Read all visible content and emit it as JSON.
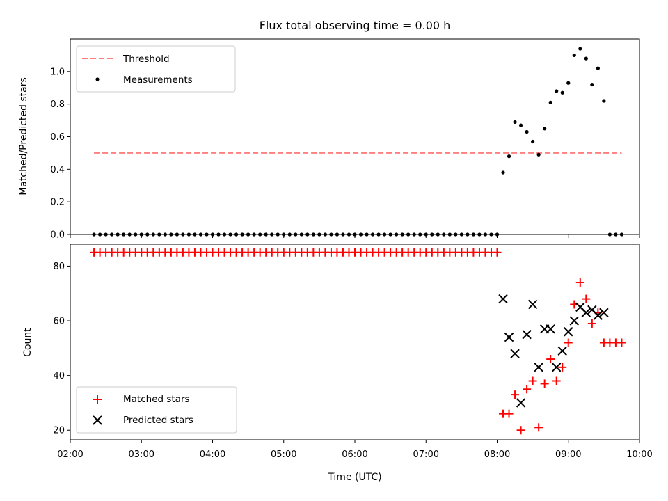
{
  "chart_data": [
    {
      "type": "scatter",
      "title": "Flux total observing time = 0.00 h",
      "xlabel": "",
      "ylabel": "Matched/Predicted stars",
      "xlim": [
        "02:00",
        "10:00"
      ],
      "ylim": [
        0,
        1.2
      ],
      "yticks": [
        0.0,
        0.2,
        0.4,
        0.6,
        0.8,
        1.0
      ],
      "yticklabels": [
        "0.0",
        "0.2",
        "0.4",
        "0.6",
        "0.8",
        "1.0"
      ],
      "xticks": [
        "02:00",
        "03:00",
        "04:00",
        "05:00",
        "06:00",
        "07:00",
        "08:00",
        "09:00",
        "10:00"
      ],
      "legend_position": "upper-left",
      "threshold": {
        "name": "Threshold",
        "value": 0.5,
        "x_range": [
          "02:20",
          "09:45"
        ],
        "color": "#ff7f7f",
        "style": "dashed"
      },
      "series": [
        {
          "name": "Measurements",
          "color": "#000000",
          "marker": "dot",
          "points": [
            [
              "02:20",
              0
            ],
            [
              "02:25",
              0
            ],
            [
              "02:30",
              0
            ],
            [
              "02:35",
              0
            ],
            [
              "02:40",
              0
            ],
            [
              "02:45",
              0
            ],
            [
              "02:50",
              0
            ],
            [
              "02:55",
              0
            ],
            [
              "03:00",
              0
            ],
            [
              "03:05",
              0
            ],
            [
              "03:10",
              0
            ],
            [
              "03:15",
              0
            ],
            [
              "03:20",
              0
            ],
            [
              "03:25",
              0
            ],
            [
              "03:30",
              0
            ],
            [
              "03:35",
              0
            ],
            [
              "03:40",
              0
            ],
            [
              "03:45",
              0
            ],
            [
              "03:50",
              0
            ],
            [
              "03:55",
              0
            ],
            [
              "04:00",
              0
            ],
            [
              "04:05",
              0
            ],
            [
              "04:10",
              0
            ],
            [
              "04:15",
              0
            ],
            [
              "04:20",
              0
            ],
            [
              "04:25",
              0
            ],
            [
              "04:30",
              0
            ],
            [
              "04:35",
              0
            ],
            [
              "04:40",
              0
            ],
            [
              "04:45",
              0
            ],
            [
              "04:50",
              0
            ],
            [
              "04:55",
              0
            ],
            [
              "05:00",
              0
            ],
            [
              "05:05",
              0
            ],
            [
              "05:10",
              0
            ],
            [
              "05:15",
              0
            ],
            [
              "05:20",
              0
            ],
            [
              "05:25",
              0
            ],
            [
              "05:30",
              0
            ],
            [
              "05:35",
              0
            ],
            [
              "05:40",
              0
            ],
            [
              "05:45",
              0
            ],
            [
              "05:50",
              0
            ],
            [
              "05:55",
              0
            ],
            [
              "06:00",
              0
            ],
            [
              "06:05",
              0
            ],
            [
              "06:10",
              0
            ],
            [
              "06:15",
              0
            ],
            [
              "06:20",
              0
            ],
            [
              "06:25",
              0
            ],
            [
              "06:30",
              0
            ],
            [
              "06:35",
              0
            ],
            [
              "06:40",
              0
            ],
            [
              "06:45",
              0
            ],
            [
              "06:50",
              0
            ],
            [
              "06:55",
              0
            ],
            [
              "07:00",
              0
            ],
            [
              "07:05",
              0
            ],
            [
              "07:10",
              0
            ],
            [
              "07:15",
              0
            ],
            [
              "07:20",
              0
            ],
            [
              "07:25",
              0
            ],
            [
              "07:30",
              0
            ],
            [
              "07:35",
              0
            ],
            [
              "07:40",
              0
            ],
            [
              "07:45",
              0
            ],
            [
              "07:50",
              0
            ],
            [
              "07:55",
              0
            ],
            [
              "08:00",
              0
            ],
            [
              "08:05",
              0.38
            ],
            [
              "08:10",
              0.48
            ],
            [
              "08:15",
              0.69
            ],
            [
              "08:20",
              0.67
            ],
            [
              "08:25",
              0.63
            ],
            [
              "08:30",
              0.57
            ],
            [
              "08:35",
              0.49
            ],
            [
              "08:40",
              0.65
            ],
            [
              "08:45",
              0.81
            ],
            [
              "08:50",
              0.88
            ],
            [
              "08:55",
              0.87
            ],
            [
              "09:00",
              0.93
            ],
            [
              "09:05",
              1.1
            ],
            [
              "09:10",
              1.14
            ],
            [
              "09:15",
              1.08
            ],
            [
              "09:20",
              0.92
            ],
            [
              "09:25",
              1.02
            ],
            [
              "09:30",
              0.82
            ],
            [
              "09:35",
              0
            ],
            [
              "09:40",
              0
            ],
            [
              "09:45",
              0
            ]
          ]
        }
      ]
    },
    {
      "type": "scatter",
      "title": "",
      "xlabel": "Time (UTC)",
      "ylabel": "Count",
      "xlim": [
        "02:00",
        "10:00"
      ],
      "ylim": [
        16.5,
        88
      ],
      "yticks": [
        20,
        40,
        60,
        80
      ],
      "yticklabels": [
        "20",
        "40",
        "60",
        "80"
      ],
      "xticks": [
        "02:00",
        "03:00",
        "04:00",
        "05:00",
        "06:00",
        "07:00",
        "08:00",
        "09:00",
        "10:00"
      ],
      "xticklabels": [
        "02:00",
        "03:00",
        "04:00",
        "05:00",
        "06:00",
        "07:00",
        "08:00",
        "09:00",
        "10:00"
      ],
      "legend_position": "lower-left",
      "series": [
        {
          "name": "Matched stars",
          "color": "#ff0000",
          "marker": "plus",
          "points": [
            [
              "02:20",
              85
            ],
            [
              "02:25",
              85
            ],
            [
              "02:30",
              85
            ],
            [
              "02:35",
              85
            ],
            [
              "02:40",
              85
            ],
            [
              "02:45",
              85
            ],
            [
              "02:50",
              85
            ],
            [
              "02:55",
              85
            ],
            [
              "03:00",
              85
            ],
            [
              "03:05",
              85
            ],
            [
              "03:10",
              85
            ],
            [
              "03:15",
              85
            ],
            [
              "03:20",
              85
            ],
            [
              "03:25",
              85
            ],
            [
              "03:30",
              85
            ],
            [
              "03:35",
              85
            ],
            [
              "03:40",
              85
            ],
            [
              "03:45",
              85
            ],
            [
              "03:50",
              85
            ],
            [
              "03:55",
              85
            ],
            [
              "04:00",
              85
            ],
            [
              "04:05",
              85
            ],
            [
              "04:10",
              85
            ],
            [
              "04:15",
              85
            ],
            [
              "04:20",
              85
            ],
            [
              "04:25",
              85
            ],
            [
              "04:30",
              85
            ],
            [
              "04:35",
              85
            ],
            [
              "04:40",
              85
            ],
            [
              "04:45",
              85
            ],
            [
              "04:50",
              85
            ],
            [
              "04:55",
              85
            ],
            [
              "05:00",
              85
            ],
            [
              "05:05",
              85
            ],
            [
              "05:10",
              85
            ],
            [
              "05:15",
              85
            ],
            [
              "05:20",
              85
            ],
            [
              "05:25",
              85
            ],
            [
              "05:30",
              85
            ],
            [
              "05:35",
              85
            ],
            [
              "05:40",
              85
            ],
            [
              "05:45",
              85
            ],
            [
              "05:50",
              85
            ],
            [
              "05:55",
              85
            ],
            [
              "06:00",
              85
            ],
            [
              "06:05",
              85
            ],
            [
              "06:10",
              85
            ],
            [
              "06:15",
              85
            ],
            [
              "06:20",
              85
            ],
            [
              "06:25",
              85
            ],
            [
              "06:30",
              85
            ],
            [
              "06:35",
              85
            ],
            [
              "06:40",
              85
            ],
            [
              "06:45",
              85
            ],
            [
              "06:50",
              85
            ],
            [
              "06:55",
              85
            ],
            [
              "07:00",
              85
            ],
            [
              "07:05",
              85
            ],
            [
              "07:10",
              85
            ],
            [
              "07:15",
              85
            ],
            [
              "07:20",
              85
            ],
            [
              "07:25",
              85
            ],
            [
              "07:30",
              85
            ],
            [
              "07:35",
              85
            ],
            [
              "07:40",
              85
            ],
            [
              "07:45",
              85
            ],
            [
              "07:50",
              85
            ],
            [
              "07:55",
              85
            ],
            [
              "08:00",
              85
            ],
            [
              "08:05",
              26
            ],
            [
              "08:10",
              26
            ],
            [
              "08:15",
              33
            ],
            [
              "08:20",
              20
            ],
            [
              "08:25",
              35
            ],
            [
              "08:30",
              38
            ],
            [
              "08:35",
              21
            ],
            [
              "08:40",
              37
            ],
            [
              "08:45",
              46
            ],
            [
              "08:50",
              38
            ],
            [
              "08:55",
              43
            ],
            [
              "09:00",
              52
            ],
            [
              "09:05",
              66
            ],
            [
              "09:10",
              74
            ],
            [
              "09:15",
              68
            ],
            [
              "09:20",
              59
            ],
            [
              "09:25",
              63
            ],
            [
              "09:30",
              52
            ],
            [
              "09:35",
              52
            ],
            [
              "09:40",
              52
            ],
            [
              "09:45",
              52
            ]
          ]
        },
        {
          "name": "Predicted stars",
          "color": "#000000",
          "marker": "x",
          "points": [
            [
              "08:05",
              68
            ],
            [
              "08:10",
              54
            ],
            [
              "08:15",
              48
            ],
            [
              "08:20",
              30
            ],
            [
              "08:25",
              55
            ],
            [
              "08:30",
              66
            ],
            [
              "08:35",
              43
            ],
            [
              "08:40",
              57
            ],
            [
              "08:45",
              57
            ],
            [
              "08:50",
              43
            ],
            [
              "08:55",
              49
            ],
            [
              "09:00",
              56
            ],
            [
              "09:05",
              60
            ],
            [
              "09:10",
              65
            ],
            [
              "09:15",
              63
            ],
            [
              "09:20",
              64
            ],
            [
              "09:25",
              62
            ],
            [
              "09:30",
              63
            ]
          ]
        }
      ]
    }
  ]
}
